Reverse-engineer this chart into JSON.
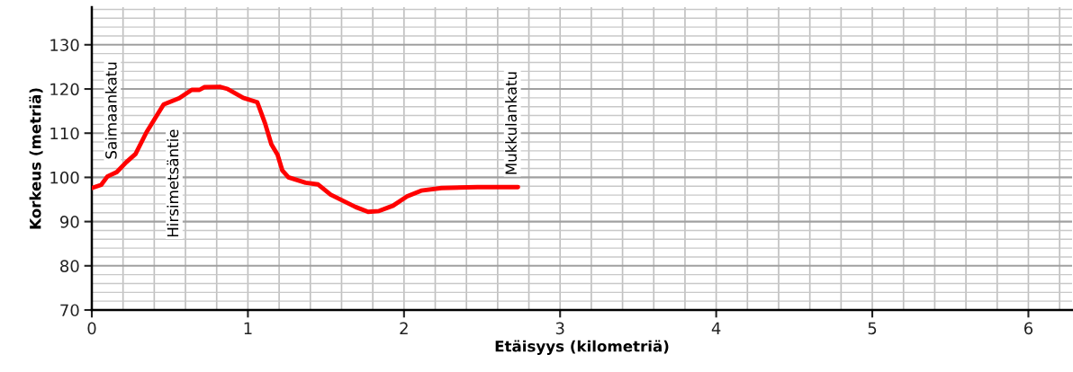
{
  "chart_data": {
    "type": "line",
    "xlabel": "Etäisyys (kilometriä)",
    "ylabel": "Korkeus (metriä)",
    "xlim": [
      0,
      6.28
    ],
    "ylim": [
      70,
      138.5
    ],
    "xticks": [
      0,
      1,
      2,
      3,
      4,
      5,
      6
    ],
    "yticks": [
      70,
      80,
      90,
      100,
      110,
      120,
      130
    ],
    "grid": true,
    "marker": "none",
    "line_style": "solid",
    "series": [
      {
        "color": "#ff0000",
        "x": [
          0,
          0.06,
          0.1,
          0.16,
          0.22,
          0.28,
          0.35,
          0.46,
          0.56,
          0.64,
          0.69,
          0.72,
          0.82,
          0.87,
          0.97,
          1.06,
          1.11,
          1.15,
          1.19,
          1.22,
          1.26,
          1.37,
          1.45,
          1.53,
          1.69,
          1.77,
          1.84,
          1.93,
          2.02,
          2.11,
          2.24,
          2.47,
          2.73
        ],
        "values": [
          97.6,
          98.3,
          100.2,
          101.2,
          103.4,
          105.3,
          110.2,
          116.5,
          117.9,
          119.8,
          119.8,
          120.4,
          120.5,
          120.0,
          118.0,
          117.0,
          112.2,
          107.5,
          105.1,
          101.6,
          100.0,
          98.8,
          98.4,
          96.1,
          93.3,
          92.2,
          92.4,
          93.6,
          95.7,
          97.0,
          97.6,
          97.8,
          97.8
        ]
      }
    ],
    "annotations": [
      "Saimaankatu",
      "Hirsimetsäntie",
      "Mukkulankatu"
    ]
  }
}
